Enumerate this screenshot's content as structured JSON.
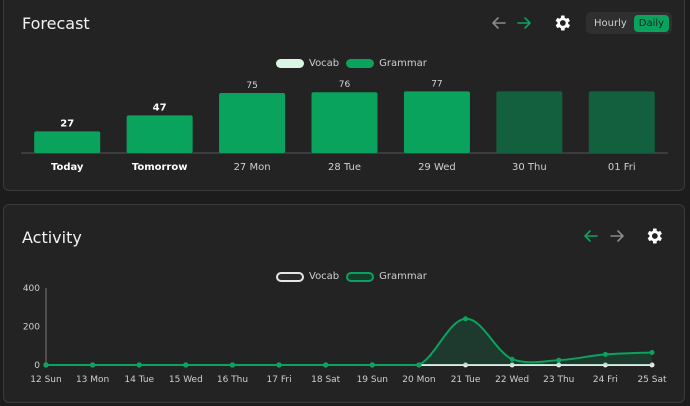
{
  "forecast": {
    "title": "Forecast",
    "toggle": {
      "hourly": "Hourly",
      "daily": "Daily",
      "selected": "Daily"
    },
    "legend": [
      {
        "name": "Vocab",
        "color": "#d9f5e6"
      },
      {
        "name": "Grammar",
        "color": "#0aa35e"
      }
    ],
    "chart_data": {
      "type": "bar",
      "categories": [
        "Today",
        "Tomorrow",
        "27 Mon",
        "28 Tue",
        "29 Wed",
        "30 Thu",
        "01 Fri"
      ],
      "values": [
        27,
        47,
        75,
        76,
        77,
        null,
        null
      ],
      "value_labels": [
        "27",
        "47",
        "75",
        "76",
        "77",
        "",
        ""
      ],
      "bold_categories": [
        "Today",
        "Tomorrow"
      ],
      "series": [
        {
          "name": "Grammar",
          "values": [
            27,
            47,
            75,
            76,
            77,
            77,
            77
          ]
        }
      ],
      "colors": {
        "current": "#0aa35e",
        "future": "#13603f"
      }
    }
  },
  "activity": {
    "title": "Activity",
    "legend": [
      {
        "name": "Vocab",
        "color": "#d9f5e6"
      },
      {
        "name": "Grammar",
        "color": "#0aa35e"
      }
    ],
    "chart_data": {
      "type": "line",
      "x": [
        "12 Sun",
        "13 Mon",
        "14 Tue",
        "15 Wed",
        "16 Thu",
        "17 Fri",
        "18 Sat",
        "19 Sun",
        "20 Mon",
        "21 Tue",
        "22 Wed",
        "23 Thu",
        "24 Fri",
        "25 Sat"
      ],
      "yticks": [
        "400",
        "200",
        "0"
      ],
      "ylim": [
        0,
        400
      ],
      "series": [
        {
          "name": "Vocab",
          "color": "#e6e6e6",
          "values": [
            0,
            0,
            0,
            0,
            0,
            0,
            0,
            0,
            0,
            0,
            0,
            0,
            0,
            0
          ]
        },
        {
          "name": "Grammar",
          "color": "#0aa35e",
          "values": [
            0,
            0,
            0,
            0,
            0,
            0,
            0,
            0,
            0,
            240,
            30,
            25,
            55,
            65
          ]
        }
      ]
    }
  }
}
